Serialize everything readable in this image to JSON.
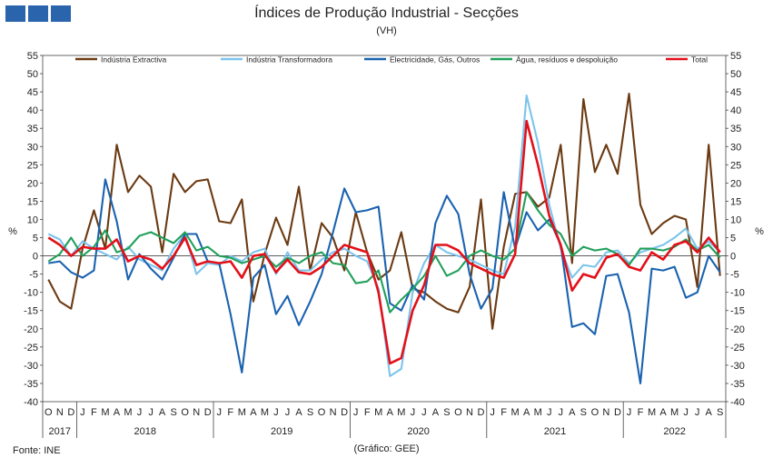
{
  "header": {
    "title": "Índices de Produção Industrial - Secções",
    "subtitle": "(VH)",
    "logo_icon": "gee-logo-icon"
  },
  "footer": {
    "source": "Fonte: INE",
    "credit": "(Gráfico: GEE)"
  },
  "chart_data": {
    "type": "line",
    "title": "Índices de Produção Industrial - Secções",
    "subtitle": "(VH)",
    "ylabel_left": "%",
    "ylabel_right": "%",
    "ylim": [
      -40,
      55
    ],
    "yticks": [
      -40,
      -35,
      -30,
      -25,
      -20,
      -15,
      -10,
      -5,
      0,
      5,
      10,
      15,
      20,
      25,
      30,
      35,
      40,
      45,
      50,
      55
    ],
    "grid": false,
    "legend_position": "top",
    "x": [
      "O",
      "N",
      "D",
      "J",
      "F",
      "M",
      "A",
      "M",
      "J",
      "J",
      "A",
      "S",
      "O",
      "N",
      "D",
      "J",
      "F",
      "M",
      "A",
      "M",
      "J",
      "J",
      "A",
      "S",
      "O",
      "N",
      "D",
      "J",
      "F",
      "M",
      "A",
      "M",
      "J",
      "J",
      "A",
      "S",
      "O",
      "N",
      "D",
      "J",
      "F",
      "M",
      "A",
      "M",
      "J",
      "J",
      "A",
      "S",
      "O",
      "N",
      "D",
      "J",
      "F",
      "M",
      "A",
      "M",
      "J",
      "J",
      "A",
      "S"
    ],
    "year_groups": [
      {
        "label": "2017",
        "start": 0,
        "end": 2
      },
      {
        "label": "2018",
        "start": 3,
        "end": 14
      },
      {
        "label": "2019",
        "start": 15,
        "end": 26
      },
      {
        "label": "2020",
        "start": 27,
        "end": 38
      },
      {
        "label": "2021",
        "start": 39,
        "end": 50
      },
      {
        "label": "2022",
        "start": 51,
        "end": 59
      }
    ],
    "series": [
      {
        "name": "Indústria Extractiva",
        "color": "#6b3a12",
        "values": [
          -6.5,
          -12.5,
          -14.5,
          2,
          12.5,
          2,
          30.5,
          17.5,
          22,
          19,
          1,
          22.5,
          17.5,
          20.5,
          21,
          9.5,
          9,
          15.5,
          -12.5,
          0.5,
          10.5,
          3,
          19,
          -4,
          9,
          5,
          -4,
          12,
          1,
          -6.5,
          -4,
          6.5,
          -9,
          -10,
          -12.5,
          -14.5,
          -15.5,
          -8.5,
          15.5,
          -20,
          2.5,
          17,
          17.5,
          13.5,
          16,
          30.5,
          -2,
          43,
          23,
          30.5,
          22.5,
          44.5,
          14,
          6,
          9,
          11,
          10,
          -8.5,
          30.5,
          -5.5
        ]
      },
      {
        "name": "Indústria Transformadora",
        "color": "#7cc4ec",
        "values": [
          6,
          4.5,
          0,
          4,
          2,
          0.5,
          -1,
          2.5,
          -1,
          -2.5,
          -4,
          2,
          6,
          -5,
          -2,
          -2.5,
          0,
          -1.5,
          1,
          2,
          -5,
          1,
          -4,
          -4,
          -1,
          1,
          2,
          0,
          -1.5,
          -9,
          -33,
          -31,
          -10,
          -2,
          3,
          1,
          0,
          -1,
          -2.5,
          -4,
          -5,
          8,
          44,
          31,
          14,
          2,
          -6,
          -2.5,
          -3,
          1,
          1.5,
          -2,
          1,
          2,
          3,
          5,
          7.5,
          2,
          4,
          1
        ]
      },
      {
        "name": "Electricidade, Gás, Outros",
        "color": "#1a62b0",
        "values": [
          -2,
          -1.5,
          -4.5,
          -6,
          -4,
          21,
          9.5,
          -6.5,
          0.5,
          -3.5,
          -6.5,
          -0.5,
          6,
          6,
          -1.5,
          -2,
          -16,
          -32,
          -6,
          -2.5,
          -16,
          -11,
          -19,
          -12.5,
          -5,
          6.5,
          18.5,
          12,
          12.5,
          13.5,
          -13,
          -15,
          -8,
          -12,
          9,
          16.5,
          11.5,
          -5,
          -14.5,
          -9,
          17.5,
          2,
          12,
          7,
          10,
          3,
          -19.5,
          -18.5,
          -21.5,
          -5.5,
          -5,
          -15.5,
          -35,
          -3.5,
          -4,
          -3,
          -11.5,
          -10,
          0,
          -4.5
        ]
      },
      {
        "name": "Água, resíduos e despoluição",
        "color": "#21a05a",
        "values": [
          -1.5,
          0.5,
          5,
          0,
          2.5,
          7,
          1,
          2,
          5.5,
          6.5,
          5,
          3.5,
          6.5,
          1.5,
          2.5,
          0,
          -0.5,
          -2,
          -1,
          0,
          -3,
          -0.5,
          -2,
          0,
          1,
          -2,
          -2.5,
          -7.5,
          -7,
          -4,
          -15.5,
          -12,
          -9,
          -5.5,
          0,
          -5.5,
          -4,
          0,
          1.5,
          0,
          -1,
          2,
          17.5,
          12.5,
          8.5,
          6,
          0,
          2.5,
          1.5,
          2,
          0.5,
          -2.5,
          2,
          2,
          1.5,
          2.5,
          4.5,
          1.5,
          3,
          -0.5
        ]
      },
      {
        "name": "Total",
        "color": "#e3101a",
        "values": [
          5,
          3,
          0,
          2.5,
          2,
          2,
          4.5,
          -1.5,
          0,
          -1,
          -3.5,
          0,
          5,
          -2.5,
          -1.5,
          -2,
          -1.5,
          -6,
          0,
          0.5,
          -4.5,
          -1,
          -4.5,
          -5,
          -3,
          0,
          3,
          2,
          1,
          -10,
          -29.5,
          -28,
          -15,
          -8,
          3,
          3,
          1.5,
          -2,
          -3.5,
          -5,
          -6,
          0.5,
          37,
          25,
          11,
          3,
          -9.5,
          -5,
          -6,
          -0.5,
          0.5,
          -3,
          -4,
          1,
          -1,
          3,
          4,
          1,
          5,
          1
        ]
      }
    ]
  }
}
